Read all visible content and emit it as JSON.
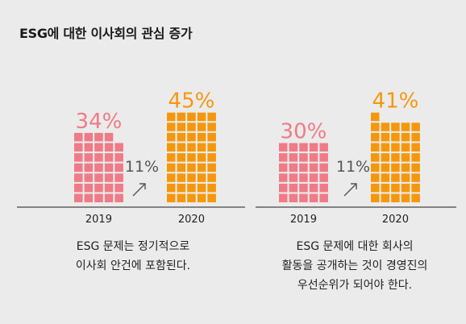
{
  "title": "ESG에 대한 이사회의 관심 증가",
  "colors": {
    "pink": "#ef7b87",
    "orange": "#f5970d",
    "growth_text": "#555555",
    "axis": "#444444"
  },
  "chart_data": [
    {
      "type": "bar",
      "categories": [
        "2019",
        "2020"
      ],
      "values": [
        34,
        45
      ],
      "labels": [
        "34%",
        "45%"
      ],
      "colors": [
        "#ef7b87",
        "#f5970d"
      ],
      "growth": "11%",
      "caption_lines": [
        "ESG 문제는 정기적으로",
        "이사회 안건에 포함된다."
      ]
    },
    {
      "type": "bar",
      "categories": [
        "2019",
        "2020"
      ],
      "values": [
        30,
        41
      ],
      "labels": [
        "30%",
        "41%"
      ],
      "colors": [
        "#ef7b87",
        "#f5970d"
      ],
      "growth": "11%",
      "caption_lines": [
        "ESG 문제에 대한 회사의",
        "활동을 공개하는 것이 경영진의",
        "우선순위가 되어야 한다."
      ]
    }
  ]
}
